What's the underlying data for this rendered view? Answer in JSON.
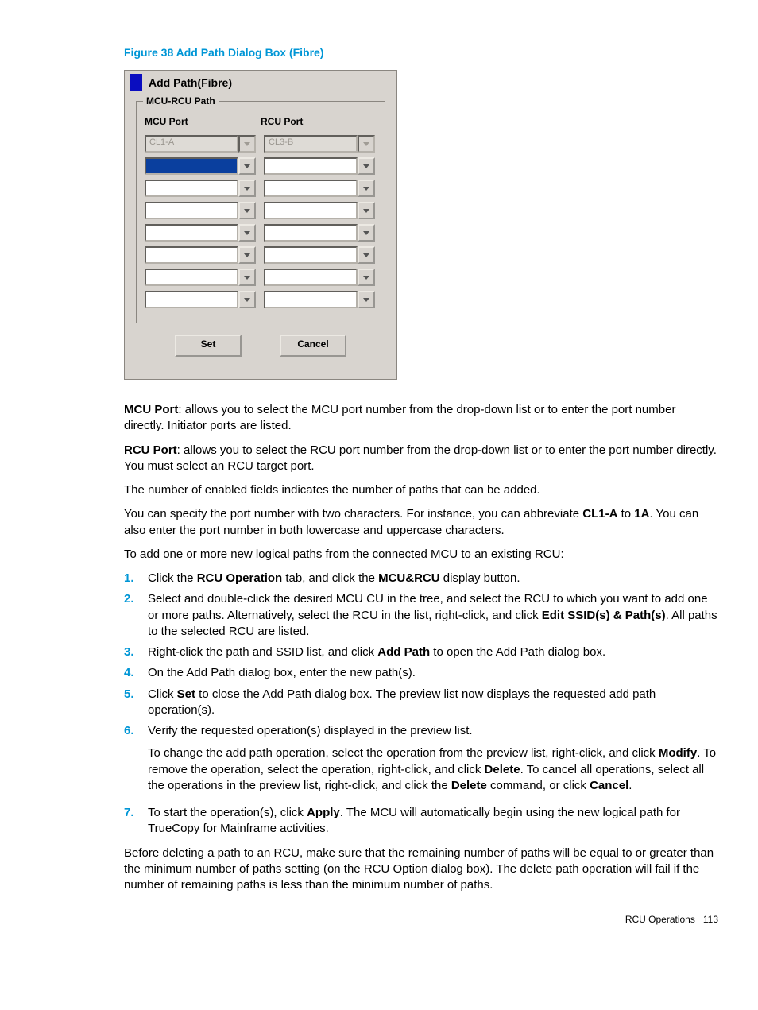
{
  "figure_caption": "Figure 38 Add Path Dialog Box (Fibre)",
  "dialog": {
    "title": "Add Path(Fibre)",
    "fieldset_legend": "MCU-RCU Path",
    "mcu_header": "MCU Port",
    "rcu_header": "RCU Port",
    "mcu_first_value": "CL1-A",
    "rcu_first_value": "CL3-B",
    "set_label": "Set",
    "cancel_label": "Cancel"
  },
  "paragraphs": {
    "mcu_port_label": "MCU Port",
    "mcu_port_text": ": allows you to select the MCU port number from the drop-down list or to enter the port number directly. Initiator ports are listed.",
    "rcu_port_label": "RCU Port",
    "rcu_port_text": ": allows you to select the RCU port number from the drop-down list or to enter the port number directly. You must select an RCU target port.",
    "enabled_fields": "The number of enabled fields indicates the number of paths that can be added.",
    "abbrev_pre": "You can specify the port number with two characters. For instance, you can abbreviate ",
    "abbrev_b1": "CL1-A",
    "abbrev_mid": " to ",
    "abbrev_b2": "1A",
    "abbrev_post": ". You can also enter the port number in both lowercase and uppercase characters.",
    "intro_steps": "To add one or more new logical paths from the connected MCU to an existing RCU:"
  },
  "steps": {
    "s1_a": "Click the ",
    "s1_b1": "RCU Operation",
    "s1_b": " tab, and click the ",
    "s1_b2": "MCU&RCU",
    "s1_c": " display button.",
    "s2_a": "Select and double-click the desired MCU CU in the tree, and select the RCU to which you want to add one or more paths. Alternatively, select the RCU in the list, right-click, and click ",
    "s2_b1": "Edit SSID(s) & Path(s)",
    "s2_b": ". All paths to the selected RCU are listed.",
    "s3_a": "Right-click the path and SSID list, and click ",
    "s3_b1": "Add Path",
    "s3_b": " to open the Add Path dialog box.",
    "s4": "On the Add Path dialog box, enter the new path(s).",
    "s5_a": "Click ",
    "s5_b1": "Set",
    "s5_b": " to close the Add Path dialog box. The preview list now displays the requested add path operation(s).",
    "s6": "Verify the requested operation(s) displayed in the preview list.",
    "s6p2_a": "To change the add path operation, select the operation from the preview list, right-click, and click ",
    "s6p2_b1": "Modify",
    "s6p2_b": ". To remove the operation, select the operation, right-click, and click ",
    "s6p2_b2": "Delete",
    "s6p2_c": ". To cancel all operations, select all the operations in the preview list, right-click, and click the ",
    "s6p2_b3": "Delete",
    "s6p2_d": " command, or click ",
    "s6p2_b4": "Cancel",
    "s6p2_e": ".",
    "s7_a": "To start the operation(s), click ",
    "s7_b1": "Apply",
    "s7_b": ". The MCU will automatically begin using the new logical path for TrueCopy for Mainframe activities."
  },
  "closing": "Before deleting a path to an RCU, make sure that the remaining number of paths will be equal to or greater than the minimum number of paths setting (on the RCU Option dialog box). The delete path operation will fail if the number of remaining paths is less than the minimum number of paths.",
  "footer_label": "RCU Operations",
  "footer_page": "113"
}
